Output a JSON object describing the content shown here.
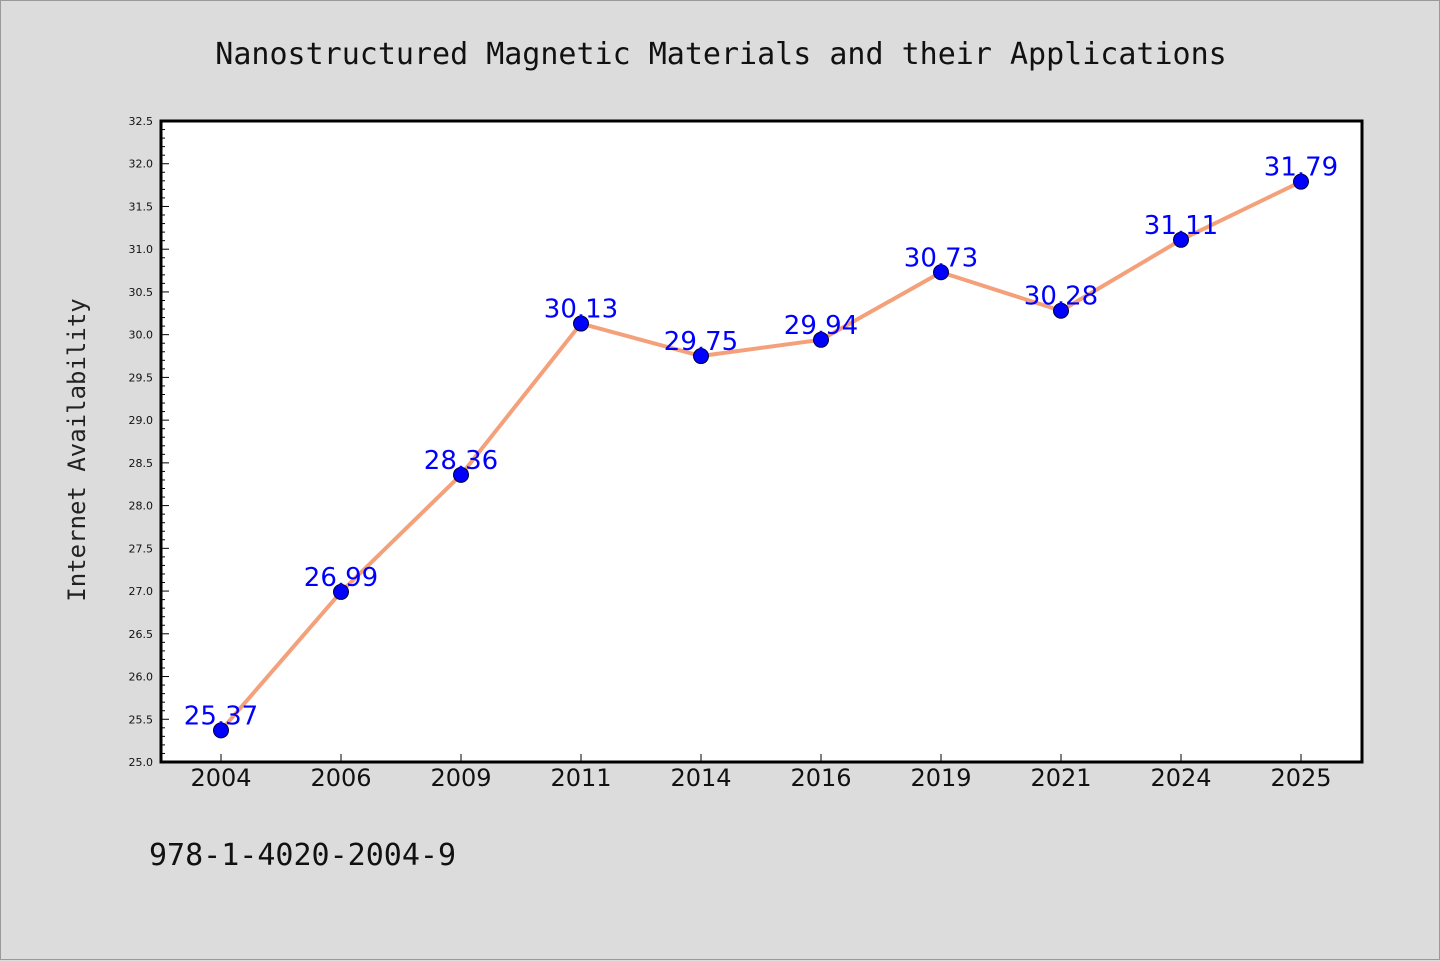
{
  "chart_data": {
    "type": "line",
    "title": "Nanostructured Magnetic Materials and their Applications",
    "xlabel": "",
    "ylabel": "Internet Availability",
    "categories": [
      "2004",
      "2006",
      "2009",
      "2011",
      "2014",
      "2016",
      "2019",
      "2021",
      "2024",
      "2025"
    ],
    "series": [
      {
        "values": [
          25.37,
          26.99,
          28.36,
          30.13,
          29.75,
          29.94,
          30.73,
          30.28,
          31.11,
          31.79
        ]
      }
    ],
    "data_labels": [
      "25.37",
      "26.99",
      "28.36",
      "30.13",
      "29.75",
      "29.94",
      "30.73",
      "30.28",
      "31.11",
      "31.79"
    ],
    "ylim": [
      25.0,
      32.5
    ],
    "yticks": [
      "25.0",
      "25.5",
      "26.0",
      "26.5",
      "27.0",
      "27.5",
      "28.0",
      "28.5",
      "29.0",
      "29.5",
      "30.0",
      "30.5",
      "31.0",
      "31.5",
      "32.0",
      "32.5"
    ],
    "grid": false,
    "legend": "none",
    "colors": {
      "line": "#f4a07a",
      "marker": "#0000ff",
      "data_label": "#0000ff",
      "background": "#dcdcdc",
      "plot_background": "#ffffff"
    }
  },
  "footer": {
    "text": "978-1-4020-2004-9"
  }
}
